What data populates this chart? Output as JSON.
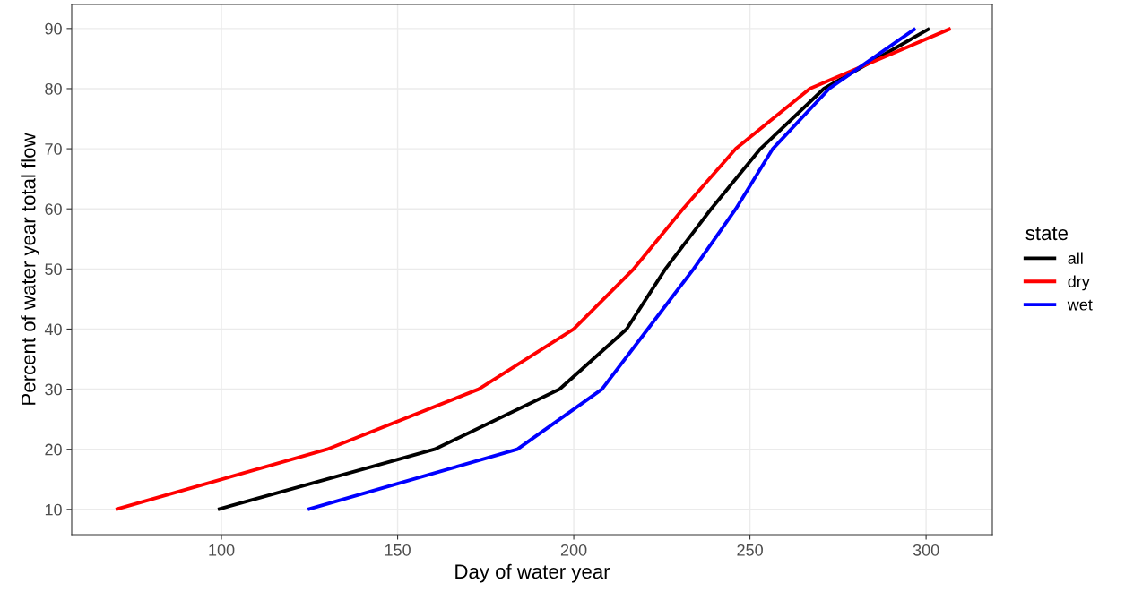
{
  "chart_data": {
    "type": "line",
    "xlabel": "Day of water year",
    "ylabel": "Percent of water year total flow",
    "legend_title": "state",
    "legend": "right",
    "grid": true,
    "line_style": "solid",
    "xlim": [
      57.5,
      318.8
    ],
    "ylim": [
      5.8,
      94
    ],
    "xticks": [
      100,
      150,
      200,
      250,
      300
    ],
    "yticks": [
      10,
      20,
      30,
      40,
      50,
      60,
      70,
      80,
      90
    ],
    "series": [
      {
        "name": "all",
        "color": "#000000",
        "x": [
          99,
          160.5,
          196,
          215,
          226,
          239,
          253,
          271,
          301
        ],
        "values": [
          10,
          20,
          30,
          40,
          50,
          60,
          70,
          80,
          90
        ]
      },
      {
        "name": "dry",
        "color": "#ff0000",
        "x": [
          70,
          130,
          173,
          200,
          217,
          231,
          246,
          267,
          307
        ],
        "values": [
          10,
          20,
          30,
          40,
          50,
          60,
          70,
          80,
          90
        ]
      },
      {
        "name": "wet",
        "color": "#0000ff",
        "x": [
          124.5,
          184,
          208,
          221,
          234,
          246,
          256.5,
          272.5,
          297
        ],
        "values": [
          10,
          20,
          30,
          40,
          50,
          60,
          70,
          80,
          90
        ]
      }
    ]
  }
}
